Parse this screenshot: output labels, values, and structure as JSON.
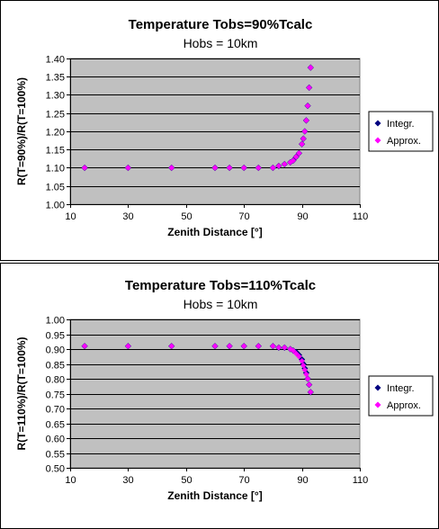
{
  "chart_data": [
    {
      "type": "scatter",
      "title": "Temperature Tobs=90%Tcalc",
      "subtitle": "Hobs = 10km",
      "xlabel": "Zenith Distance [°]",
      "ylabel": "R(T=90%)/R(T=100%)",
      "xlim": [
        10,
        110
      ],
      "ylim": [
        1.0,
        1.4
      ],
      "xticks": [
        "10",
        "30",
        "50",
        "70",
        "90",
        "110"
      ],
      "yticks": [
        "1.00",
        "1.05",
        "1.10",
        "1.15",
        "1.20",
        "1.25",
        "1.30",
        "1.35",
        "1.40"
      ],
      "grid": true,
      "legend_position": "right",
      "colors": {
        "plot_bg": "#c0c0c0",
        "integr": "#000080",
        "approx": "#ff00ff"
      },
      "series": [
        {
          "name": "Integr.",
          "color": "#000080",
          "x": [
            15,
            30,
            45,
            60,
            65,
            70,
            75,
            80,
            82,
            84,
            86,
            87,
            88,
            89,
            90,
            90.5,
            91,
            91.5,
            92,
            92.5,
            93
          ],
          "y": [
            1.1,
            1.1,
            1.1,
            1.1,
            1.1,
            1.1,
            1.1,
            1.1,
            1.105,
            1.11,
            1.115,
            1.12,
            1.13,
            1.14,
            1.165,
            1.18,
            1.2,
            1.23,
            1.27,
            1.32,
            1.375
          ]
        },
        {
          "name": "Approx.",
          "color": "#ff00ff",
          "x": [
            15,
            30,
            45,
            60,
            65,
            70,
            75,
            80,
            82,
            84,
            86,
            87,
            88,
            89,
            90,
            90.5,
            91,
            91.5,
            92,
            92.5,
            93
          ],
          "y": [
            1.1,
            1.1,
            1.1,
            1.1,
            1.1,
            1.1,
            1.1,
            1.1,
            1.105,
            1.11,
            1.115,
            1.12,
            1.13,
            1.14,
            1.165,
            1.18,
            1.2,
            1.23,
            1.27,
            1.32,
            1.375
          ]
        }
      ]
    },
    {
      "type": "scatter",
      "title": "Temperature Tobs=110%Tcalc",
      "subtitle": "Hobs = 10km",
      "xlabel": "Zenith Distance [°]",
      "ylabel": "R(T=110%)/R(T=100%)",
      "xlim": [
        10,
        110
      ],
      "ylim": [
        0.5,
        1.0
      ],
      "xticks": [
        "10",
        "30",
        "50",
        "70",
        "90",
        "110"
      ],
      "yticks": [
        "0.50",
        "0.55",
        "0.60",
        "0.65",
        "0.70",
        "0.75",
        "0.80",
        "0.85",
        "0.90",
        "0.95",
        "1.00"
      ],
      "grid": true,
      "legend_position": "right",
      "colors": {
        "plot_bg": "#c0c0c0",
        "integr": "#000080",
        "approx": "#ff00ff"
      },
      "series": [
        {
          "name": "Integr.",
          "color": "#000080",
          "x": [
            15,
            30,
            45,
            60,
            65,
            70,
            75,
            80,
            82,
            84,
            86,
            87,
            88,
            89,
            90,
            90.5,
            91,
            91.5,
            92,
            92.5,
            93
          ],
          "y": [
            0.91,
            0.91,
            0.91,
            0.91,
            0.91,
            0.91,
            0.91,
            0.91,
            0.905,
            0.905,
            0.9,
            0.895,
            0.89,
            0.88,
            0.865,
            0.85,
            0.835,
            0.82,
            0.8,
            0.78,
            0.755
          ]
        },
        {
          "name": "Approx.",
          "color": "#ff00ff",
          "x": [
            15,
            30,
            45,
            60,
            65,
            70,
            75,
            80,
            82,
            84,
            86,
            87,
            88,
            89,
            90,
            90.5,
            91,
            91.5,
            92,
            92.5,
            93
          ],
          "y": [
            0.91,
            0.91,
            0.91,
            0.91,
            0.91,
            0.91,
            0.91,
            0.91,
            0.905,
            0.905,
            0.9,
            0.895,
            0.885,
            0.875,
            0.86,
            0.845,
            0.83,
            0.815,
            0.8,
            0.78,
            0.755
          ]
        }
      ]
    }
  ]
}
